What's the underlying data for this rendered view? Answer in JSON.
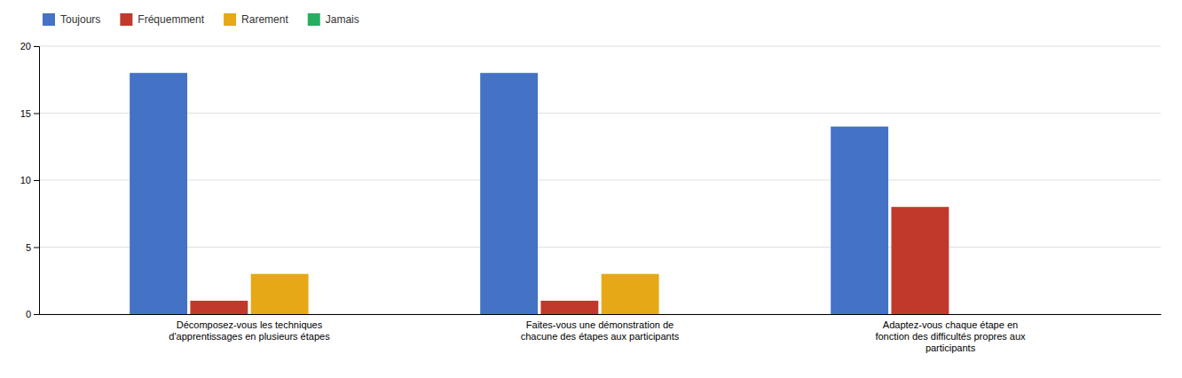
{
  "chart_data": {
    "type": "bar",
    "categories": [
      "Décomposez-vous les techniques\nd'apprentissages en plusieurs étapes",
      "Faites-vous une démonstration de\nchacune des étapes aux participants",
      "Adaptez-vous chaque étape en\nfonction des difficultés propres aux\nparticipants"
    ],
    "series": [
      {
        "name": "Toujours",
        "color": "#4472c4",
        "values": [
          18,
          18,
          14
        ]
      },
      {
        "name": "Fréquemment",
        "color": "#c0392b",
        "values": [
          1,
          1,
          8
        ]
      },
      {
        "name": "Rarement",
        "color": "#e6a817",
        "values": [
          3,
          3,
          0
        ]
      },
      {
        "name": "Jamais",
        "color": "#27ae60",
        "values": [
          0,
          0,
          0
        ]
      }
    ],
    "ylim": [
      0,
      20
    ],
    "yticks": [
      0,
      5,
      10,
      15,
      20
    ],
    "grid": true,
    "legend": "upper left"
  }
}
